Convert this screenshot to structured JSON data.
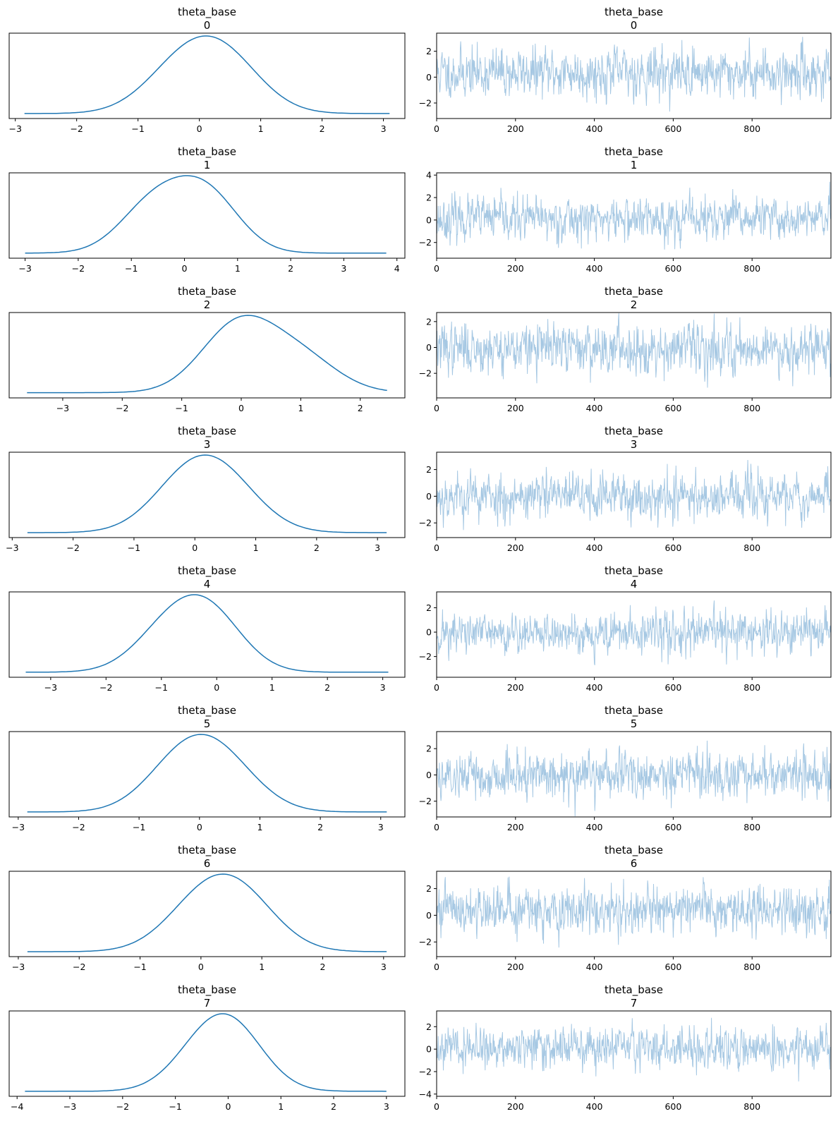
{
  "figure": {
    "type": "trace_plot",
    "variable": "theta_base",
    "colors": {
      "kde": "#1f77b4",
      "trace": "#a6c8e3",
      "axes": "#000000"
    }
  },
  "chart_data": [
    {
      "panel_index": 0,
      "title": "theta_base",
      "coord_label": "0",
      "kde": {
        "type": "line",
        "xlim": [
          -3.1,
          3.35
        ],
        "xticks": [
          -3,
          -2,
          -1,
          0,
          1,
          2,
          3
        ],
        "x_range": [
          -2.85,
          3.1
        ],
        "mode": 0.35,
        "peak": [
          [
            0.4,
            1.0
          ],
          [
            -0.3,
            0.8
          ]
        ]
      },
      "trace": {
        "type": "line",
        "xlim": [
          0,
          1000
        ],
        "xticks": [
          0,
          200,
          400,
          600,
          800
        ],
        "ylim": [
          -3.2,
          3.4
        ],
        "yticks": [
          -2,
          0,
          2
        ],
        "n_draws": 1000,
        "seed": 11,
        "mean": 0.35,
        "sd": 0.95
      }
    },
    {
      "panel_index": 1,
      "title": "theta_base",
      "coord_label": "1",
      "kde": {
        "type": "line",
        "xlim": [
          -3.3,
          4.15
        ],
        "xticks": [
          -3,
          -2,
          -1,
          0,
          1,
          2,
          3,
          4
        ],
        "x_range": [
          -3.0,
          3.8
        ],
        "mode": 0.35,
        "peak": [
          [
            0.4,
            1.0
          ],
          [
            -0.6,
            0.8
          ]
        ]
      },
      "trace": {
        "type": "line",
        "xlim": [
          0,
          1000
        ],
        "xticks": [
          0,
          200,
          400,
          600,
          800
        ],
        "ylim": [
          -3.4,
          4.2
        ],
        "yticks": [
          -2,
          0,
          2,
          4
        ],
        "n_draws": 1000,
        "seed": 23,
        "mean": 0.1,
        "sd": 0.95
      }
    },
    {
      "panel_index": 2,
      "title": "theta_base",
      "coord_label": "2",
      "kde": {
        "type": "line",
        "xlim": [
          -3.9,
          2.75
        ],
        "xticks": [
          -3,
          -2,
          -1,
          0,
          1,
          2
        ],
        "x_range": [
          -3.6,
          2.45
        ],
        "mode": -0.05,
        "peak": [
          [
            -0.05,
            1.0
          ],
          [
            1.0,
            0.5
          ]
        ]
      },
      "trace": {
        "type": "line",
        "xlim": [
          0,
          1000
        ],
        "xticks": [
          0,
          200,
          400,
          600,
          800
        ],
        "ylim": [
          -3.9,
          2.7
        ],
        "yticks": [
          -2,
          0,
          2
        ],
        "n_draws": 1000,
        "seed": 37,
        "mean": -0.05,
        "sd": 0.95
      }
    },
    {
      "panel_index": 3,
      "title": "theta_base",
      "coord_label": "3",
      "kde": {
        "type": "line",
        "xlim": [
          -3.05,
          3.45
        ],
        "xticks": [
          -3,
          -2,
          -1,
          0,
          1,
          2,
          3
        ],
        "x_range": [
          -2.75,
          3.15
        ],
        "mode": -0.05,
        "peak": [
          [
            -0.1,
            1.0
          ],
          [
            0.5,
            0.85
          ]
        ]
      },
      "trace": {
        "type": "line",
        "xlim": [
          0,
          1000
        ],
        "xticks": [
          0,
          200,
          400,
          600,
          800
        ],
        "ylim": [
          -3.1,
          3.3
        ],
        "yticks": [
          -2,
          0,
          2
        ],
        "n_draws": 1000,
        "seed": 53,
        "mean": 0.0,
        "sd": 0.9
      }
    },
    {
      "panel_index": 4,
      "title": "theta_base",
      "coord_label": "4",
      "kde": {
        "type": "line",
        "xlim": [
          -3.75,
          3.4
        ],
        "xticks": [
          -3,
          -2,
          -1,
          0,
          1,
          2,
          3
        ],
        "x_range": [
          -3.45,
          3.1
        ],
        "mode": -0.15,
        "peak": [
          [
            -0.15,
            1.0
          ],
          [
            -0.9,
            0.65
          ]
        ]
      },
      "trace": {
        "type": "line",
        "xlim": [
          0,
          1000
        ],
        "xticks": [
          0,
          200,
          400,
          600,
          800
        ],
        "ylim": [
          -3.7,
          3.3
        ],
        "yticks": [
          -2,
          0,
          2
        ],
        "n_draws": 1000,
        "seed": 71,
        "mean": -0.1,
        "sd": 0.85
      }
    },
    {
      "panel_index": 5,
      "title": "theta_base",
      "coord_label": "5",
      "kde": {
        "type": "line",
        "xlim": [
          -3.15,
          3.4
        ],
        "xticks": [
          -3,
          -2,
          -1,
          0,
          1,
          2,
          3
        ],
        "x_range": [
          -2.85,
          3.1
        ],
        "mode": -0.25,
        "peak": [
          [
            -0.25,
            1.0
          ],
          [
            0.4,
            0.8
          ]
        ]
      },
      "trace": {
        "type": "line",
        "xlim": [
          0,
          1000
        ],
        "xticks": [
          0,
          200,
          400,
          600,
          800
        ],
        "ylim": [
          -3.2,
          3.3
        ],
        "yticks": [
          -2,
          0,
          2
        ],
        "n_draws": 1000,
        "seed": 89,
        "mean": 0.0,
        "sd": 0.9
      }
    },
    {
      "panel_index": 6,
      "title": "theta_base",
      "coord_label": "6",
      "kde": {
        "type": "line",
        "xlim": [
          -3.15,
          3.35
        ],
        "xticks": [
          -3,
          -2,
          -1,
          0,
          1,
          2,
          3
        ],
        "x_range": [
          -2.85,
          3.05
        ],
        "mode": 0.65,
        "peak": [
          [
            0.65,
            1.0
          ],
          [
            0.0,
            0.85
          ]
        ]
      },
      "trace": {
        "type": "line",
        "xlim": [
          0,
          1000
        ],
        "xticks": [
          0,
          200,
          400,
          600,
          800
        ],
        "ylim": [
          -3.1,
          3.3
        ],
        "yticks": [
          -2,
          0,
          2
        ],
        "n_draws": 1000,
        "seed": 101,
        "mean": 0.4,
        "sd": 0.9
      }
    },
    {
      "panel_index": 7,
      "title": "theta_base",
      "coord_label": "7",
      "kde": {
        "type": "line",
        "xlim": [
          -4.15,
          3.35
        ],
        "xticks": [
          -4,
          -3,
          -2,
          -1,
          0,
          1,
          2,
          3
        ],
        "x_range": [
          -3.85,
          3.0
        ],
        "mode": 0.1,
        "peak": [
          [
            0.1,
            1.0
          ],
          [
            -0.5,
            0.6
          ]
        ]
      },
      "trace": {
        "type": "line",
        "xlim": [
          0,
          1000
        ],
        "xticks": [
          0,
          200,
          400,
          600,
          800
        ],
        "ylim": [
          -4.2,
          3.4
        ],
        "yticks": [
          -4,
          -2,
          0,
          2
        ],
        "n_draws": 1000,
        "seed": 131,
        "mean": 0.1,
        "sd": 0.9
      }
    }
  ]
}
